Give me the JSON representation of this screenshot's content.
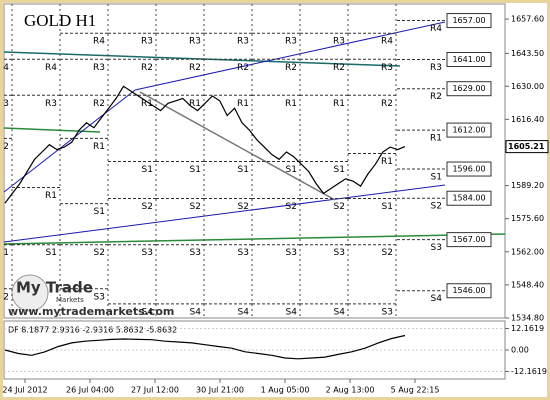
{
  "chart_data": [
    {
      "type": "line",
      "title": "GOLD H1",
      "color": "#000000",
      "watermark": {
        "logo": "My Trade",
        "logo_sub": "Markets",
        "url": "www.mytrademarkets.com"
      },
      "x_labels": [
        "24 Jul 2012",
        "26 Jul 04:00",
        "27 Jul 12:00",
        "30 Jul 21:00",
        "1 Aug 05:00",
        "2 Aug 13:00",
        "5 Aug 22:15"
      ],
      "values": [
        1582,
        1586,
        1590,
        1595,
        1600,
        1603,
        1606,
        1604,
        1605,
        1607,
        1612,
        1615,
        1613,
        1617,
        1621,
        1625,
        1630,
        1628,
        1626,
        1624,
        1622,
        1620,
        1623,
        1624,
        1625,
        1622,
        1620,
        1623,
        1626,
        1624,
        1618,
        1621,
        1615,
        1612,
        1608,
        1605,
        1602,
        1600,
        1603,
        1601,
        1598,
        1595,
        1590,
        1586,
        1588,
        1590,
        1592,
        1591,
        1589,
        1594,
        1598,
        1603,
        1605,
        1604,
        1605.21
      ],
      "last_price": 1605.21,
      "ylim": [
        1534.8,
        1663.8
      ],
      "yticks": [
        {
          "value": 1657.6,
          "label": "1657.60"
        },
        {
          "value": 1643.5,
          "label": "1643.50"
        },
        {
          "value": 1630,
          "label": "1630.00"
        },
        {
          "value": 1616.4,
          "label": "1616.40"
        },
        {
          "value": 1589.2,
          "label": "1589.20"
        },
        {
          "value": 1575.6,
          "label": "1575.60"
        },
        {
          "value": 1562,
          "label": "1562.00"
        },
        {
          "value": 1548.4,
          "label": "1548.40"
        },
        {
          "value": 1534.8,
          "label": "1534.80"
        }
      ],
      "pivots": [
        {
          "levels": [
            {
              "label": "4",
              "value": 1641.1
            },
            {
              "label": "3",
              "value": 1626.3
            },
            {
              "label": "2",
              "value": 1608.6
            },
            {
              "label": "1",
              "value": 1564.9
            },
            {
              "label": "2",
              "value": 1546.8
            }
          ]
        },
        {
          "levels": [
            {
              "label": "R4",
              "value": 1641.1
            },
            {
              "label": "R3",
              "value": 1626.3
            },
            {
              "label": "R1",
              "value": 1588.4
            },
            {
              "label": "S1",
              "value": 1564.9
            }
          ]
        },
        {
          "levels": [
            {
              "label": "R4",
              "value": 1651.8
            },
            {
              "label": "R3",
              "value": 1641.1
            },
            {
              "label": "R2",
              "value": 1626.3
            },
            {
              "label": "R1",
              "value": 1608.6
            },
            {
              "label": "S1",
              "value": 1581.8
            },
            {
              "label": "S2",
              "value": 1564.9
            },
            {
              "label": "S3",
              "value": 1546.8
            }
          ]
        },
        {
          "levels": [
            {
              "label": "R3",
              "value": 1651.8
            },
            {
              "label": "R2",
              "value": 1641.1
            },
            {
              "label": "R1",
              "value": 1626.3
            },
            {
              "label": "S1",
              "value": 1599.1
            },
            {
              "label": "S2",
              "value": 1583.9
            },
            {
              "label": "S3",
              "value": 1564.9
            },
            {
              "label": "S4",
              "value": 1540.6
            }
          ]
        },
        {
          "levels": [
            {
              "label": "R3",
              "value": 1651.8
            },
            {
              "label": "R2",
              "value": 1641.1
            },
            {
              "label": "R1",
              "value": 1626.3
            },
            {
              "label": "S1",
              "value": 1599.1
            },
            {
              "label": "S2",
              "value": 1583.9
            },
            {
              "label": "S3",
              "value": 1564.9
            },
            {
              "label": "S4",
              "value": 1540.6
            }
          ]
        },
        {
          "levels": [
            {
              "label": "R3",
              "value": 1651.8
            },
            {
              "label": "R2",
              "value": 1641.1
            },
            {
              "label": "R1",
              "value": 1626.3
            },
            {
              "label": "S1",
              "value": 1599.1
            },
            {
              "label": "S2",
              "value": 1583.9
            },
            {
              "label": "S3",
              "value": 1564.9
            },
            {
              "label": "S4",
              "value": 1540.6
            }
          ]
        },
        {
          "levels": [
            {
              "label": "R3",
              "value": 1651.8
            },
            {
              "label": "R2",
              "value": 1641.1
            },
            {
              "label": "R1",
              "value": 1626.3
            },
            {
              "label": "S1",
              "value": 1599.1
            },
            {
              "label": "S2",
              "value": 1583.9
            },
            {
              "label": "S3",
              "value": 1564.9
            },
            {
              "label": "S4",
              "value": 1540.6
            }
          ]
        },
        {
          "levels": [
            {
              "label": "R3",
              "value": 1651.8
            },
            {
              "label": "R2",
              "value": 1641.1
            },
            {
              "label": "R1",
              "value": 1626.3
            },
            {
              "label": "S1",
              "value": 1599.1
            },
            {
              "label": "S2",
              "value": 1583.9
            },
            {
              "label": "S3",
              "value": 1564.9
            },
            {
              "label": "S4",
              "value": 1540.6
            }
          ]
        },
        {
          "levels": [
            {
              "label": "R4",
              "value": 1651.8
            },
            {
              "label": "R3",
              "value": 1641.1
            },
            {
              "label": "R2",
              "value": 1626.3
            },
            {
              "label": "R1",
              "value": 1602.4
            },
            {
              "label": "S1",
              "value": 1583.9
            },
            {
              "label": "S2",
              "value": 1564.9
            },
            {
              "label": "S3",
              "value": 1540.6
            }
          ]
        },
        {
          "levels": [
            {
              "label": "R4",
              "value": 1657,
              "value_label": "1657.00"
            },
            {
              "label": "R3",
              "value": 1641,
              "value_label": "1641.00"
            },
            {
              "label": "R2",
              "value": 1629,
              "value_label": "1629.00"
            },
            {
              "label": "R1",
              "value": 1612,
              "value_label": "1612.00"
            },
            {
              "label": "S1",
              "value": 1596,
              "value_label": "1596.00"
            },
            {
              "label": "S2",
              "value": 1584,
              "value_label": "1584.00"
            },
            {
              "label": "S3",
              "value": 1567,
              "value_label": "1567.00"
            },
            {
              "label": "S4",
              "value": 1546,
              "value_label": "1546.00"
            }
          ]
        }
      ]
    },
    {
      "type": "line",
      "title": "DF 8.1877 2.9316 -2.9316 5.8632 -5.8632",
      "color": "#000000",
      "values": [
        0,
        -2,
        -3,
        -1,
        2,
        4,
        5,
        5.5,
        6,
        6.2,
        6,
        5.8,
        5,
        4.5,
        4,
        3,
        2,
        1,
        -1,
        -2,
        -3,
        -4.5,
        -5,
        -4.5,
        -4,
        -2.5,
        -1,
        1,
        4,
        6.5,
        8.1877
      ],
      "ylim": [
        -16.4,
        16.4
      ],
      "yticks": [
        12.1619,
        {
          "value": 0,
          "label": "0.00"
        },
        -12.1619
      ]
    }
  ]
}
